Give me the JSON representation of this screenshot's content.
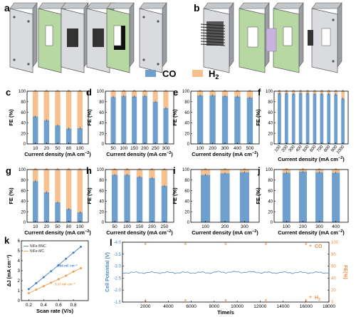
{
  "panel_labels": {
    "a": "a",
    "b": "b",
    "c": "c",
    "d": "d",
    "e": "e",
    "f": "f",
    "g": "g",
    "h": "h",
    "i": "i",
    "j": "j",
    "k": "k",
    "l": "l"
  },
  "legend": {
    "co": "CO",
    "h2_main": "H",
    "h2_sub": "2"
  },
  "colors": {
    "co": "#6f9fcc",
    "h2": "#f6c08f",
    "k_bnc": "#3f7fc2",
    "k_mc": "#ef9a45",
    "l_line": "#4d86bd",
    "l_star": "#ef8a3c",
    "plate_light": "#d9dbde",
    "plate_green": "#b7d7a3",
    "plate_dark": "#4b4b4b"
  },
  "axis": {
    "fe_label": "FE (%)",
    "cd_main": "Current density (mA cm",
    "cd_sup": "−2",
    "cd_close": ")"
  },
  "yticks_fe": [
    "0",
    "20",
    "40",
    "60",
    "80",
    "100"
  ],
  "chart_data": [
    {
      "panel": "c",
      "type": "bar",
      "categories": [
        "10",
        "20",
        "50",
        "80",
        "100"
      ],
      "series": [
        {
          "name": "CO",
          "values": [
            52,
            45,
            35,
            29,
            30
          ]
        },
        {
          "name": "H2",
          "values": [
            48,
            55,
            65,
            71,
            70
          ]
        }
      ],
      "ylim": [
        0,
        100
      ]
    },
    {
      "panel": "d",
      "type": "bar",
      "categories": [
        "50",
        "100",
        "150",
        "200",
        "250",
        "300"
      ],
      "series": [
        {
          "name": "CO",
          "values": [
            89,
            91,
            90,
            91,
            80,
            68
          ]
        },
        {
          "name": "H2",
          "values": [
            11,
            9,
            10,
            9,
            20,
            32
          ]
        }
      ],
      "ylim": [
        0,
        100
      ]
    },
    {
      "panel": "e",
      "type": "bar",
      "categories": [
        "100",
        "200",
        "300",
        "400",
        "500"
      ],
      "series": [
        {
          "name": "CO",
          "values": [
            92,
            92,
            91,
            90,
            88
          ]
        },
        {
          "name": "H2",
          "values": [
            8,
            8,
            9,
            10,
            12
          ]
        }
      ],
      "ylim": [
        0,
        100
      ]
    },
    {
      "panel": "f",
      "type": "bar",
      "categories": [
        "100",
        "200",
        "300",
        "400",
        "500",
        "600",
        "700",
        "800",
        "900",
        "1000"
      ],
      "series": [
        {
          "name": "CO",
          "values": [
            96,
            96,
            95,
            96,
            96,
            95,
            95,
            95,
            94,
            86
          ]
        },
        {
          "name": "H2",
          "values": [
            4,
            4,
            5,
            4,
            4,
            5,
            5,
            5,
            6,
            14
          ]
        }
      ],
      "ylim": [
        0,
        100
      ]
    },
    {
      "panel": "g",
      "type": "bar",
      "categories": [
        "10",
        "20",
        "50",
        "80",
        "100"
      ],
      "series": [
        {
          "name": "CO",
          "values": [
            78,
            57,
            38,
            25,
            19
          ]
        },
        {
          "name": "H2",
          "values": [
            22,
            43,
            62,
            75,
            81
          ]
        }
      ],
      "ylim": [
        0,
        100
      ]
    },
    {
      "panel": "h",
      "type": "bar",
      "categories": [
        "50",
        "100",
        "150",
        "200",
        "250"
      ],
      "series": [
        {
          "name": "CO",
          "values": [
            90,
            90,
            86,
            84,
            69
          ]
        },
        {
          "name": "H2",
          "values": [
            10,
            10,
            14,
            16,
            31
          ]
        }
      ],
      "ylim": [
        0,
        100
      ]
    },
    {
      "panel": "i",
      "type": "bar",
      "categories": [
        "100",
        "200",
        "300"
      ],
      "series": [
        {
          "name": "CO",
          "values": [
            90,
            93,
            95
          ]
        },
        {
          "name": "H2",
          "values": [
            10,
            7,
            5
          ]
        }
      ],
      "ylim": [
        0,
        100
      ]
    },
    {
      "panel": "j",
      "type": "bar",
      "categories": [
        "100",
        "200",
        "300",
        "400"
      ],
      "series": [
        {
          "name": "CO",
          "values": [
            94,
            96,
            95,
            94
          ]
        },
        {
          "name": "H2",
          "values": [
            6,
            4,
            5,
            6
          ]
        }
      ],
      "ylim": [
        0,
        100
      ]
    },
    {
      "panel": "k",
      "type": "scatter",
      "xlabel": "Scan rate (V/s)",
      "ylabel": "ΔJ (mA cm⁻²)",
      "xticks": [
        "0.2",
        "0.4",
        "0.6",
        "0.8"
      ],
      "yticks": [
        "0",
        "1",
        "2",
        "3",
        "4",
        "5",
        "6"
      ],
      "xlim": [
        0.1,
        1.0
      ],
      "ylim": [
        0,
        6
      ],
      "series": [
        {
          "name": "NiFe-BNC",
          "values": [
            [
              0.2,
              1.15
            ],
            [
              0.3,
              1.75
            ],
            [
              0.4,
              2.35
            ],
            [
              0.5,
              2.95
            ],
            [
              0.6,
              3.55
            ],
            [
              0.7,
              4.2
            ],
            [
              0.8,
              4.8
            ],
            [
              0.9,
              5.4
            ]
          ],
          "annotation": "6.84 mF cm⁻²"
        },
        {
          "name": "NiFe-MC",
          "values": [
            [
              0.2,
              0.75
            ],
            [
              0.3,
              1.1
            ],
            [
              0.4,
              1.45
            ],
            [
              0.5,
              1.8
            ],
            [
              0.6,
              2.15
            ],
            [
              0.7,
              2.5
            ],
            [
              0.8,
              2.9
            ],
            [
              0.9,
              3.25
            ]
          ],
          "annotation": "3.37 mF cm⁻²"
        }
      ]
    },
    {
      "panel": "l",
      "type": "line",
      "xlabel": "Time/s",
      "ylabel_left": "Cell Potential (V)",
      "ylabel_right": "FE(%)",
      "xticks": [
        "2000",
        "4000",
        "6000",
        "8000",
        "10000",
        "12000",
        "14000",
        "16000",
        "18000"
      ],
      "yticks_left": [
        "-4.0",
        "-3.5",
        "-3.0",
        "-2.5",
        "-2.0",
        "-1.5"
      ],
      "yticks_right": [
        "0",
        "20",
        "40",
        "60",
        "80",
        "100"
      ],
      "xlim": [
        0,
        18000
      ],
      "ylim_left": [
        -1.5,
        -4.0
      ],
      "ylim_right": [
        0,
        100
      ],
      "potential_level": -2.73,
      "co_fe": [
        [
          2000,
          97
        ],
        [
          5500,
          97
        ],
        [
          9000,
          97
        ],
        [
          12500,
          97
        ],
        [
          16000,
          97
        ]
      ],
      "h2_fe": [
        [
          2000,
          3
        ],
        [
          5500,
          3
        ],
        [
          9000,
          3
        ],
        [
          12500,
          3
        ],
        [
          16000,
          3
        ]
      ],
      "legend": {
        "co": "CO",
        "h2_main": "H",
        "h2_sub": "2"
      }
    }
  ]
}
